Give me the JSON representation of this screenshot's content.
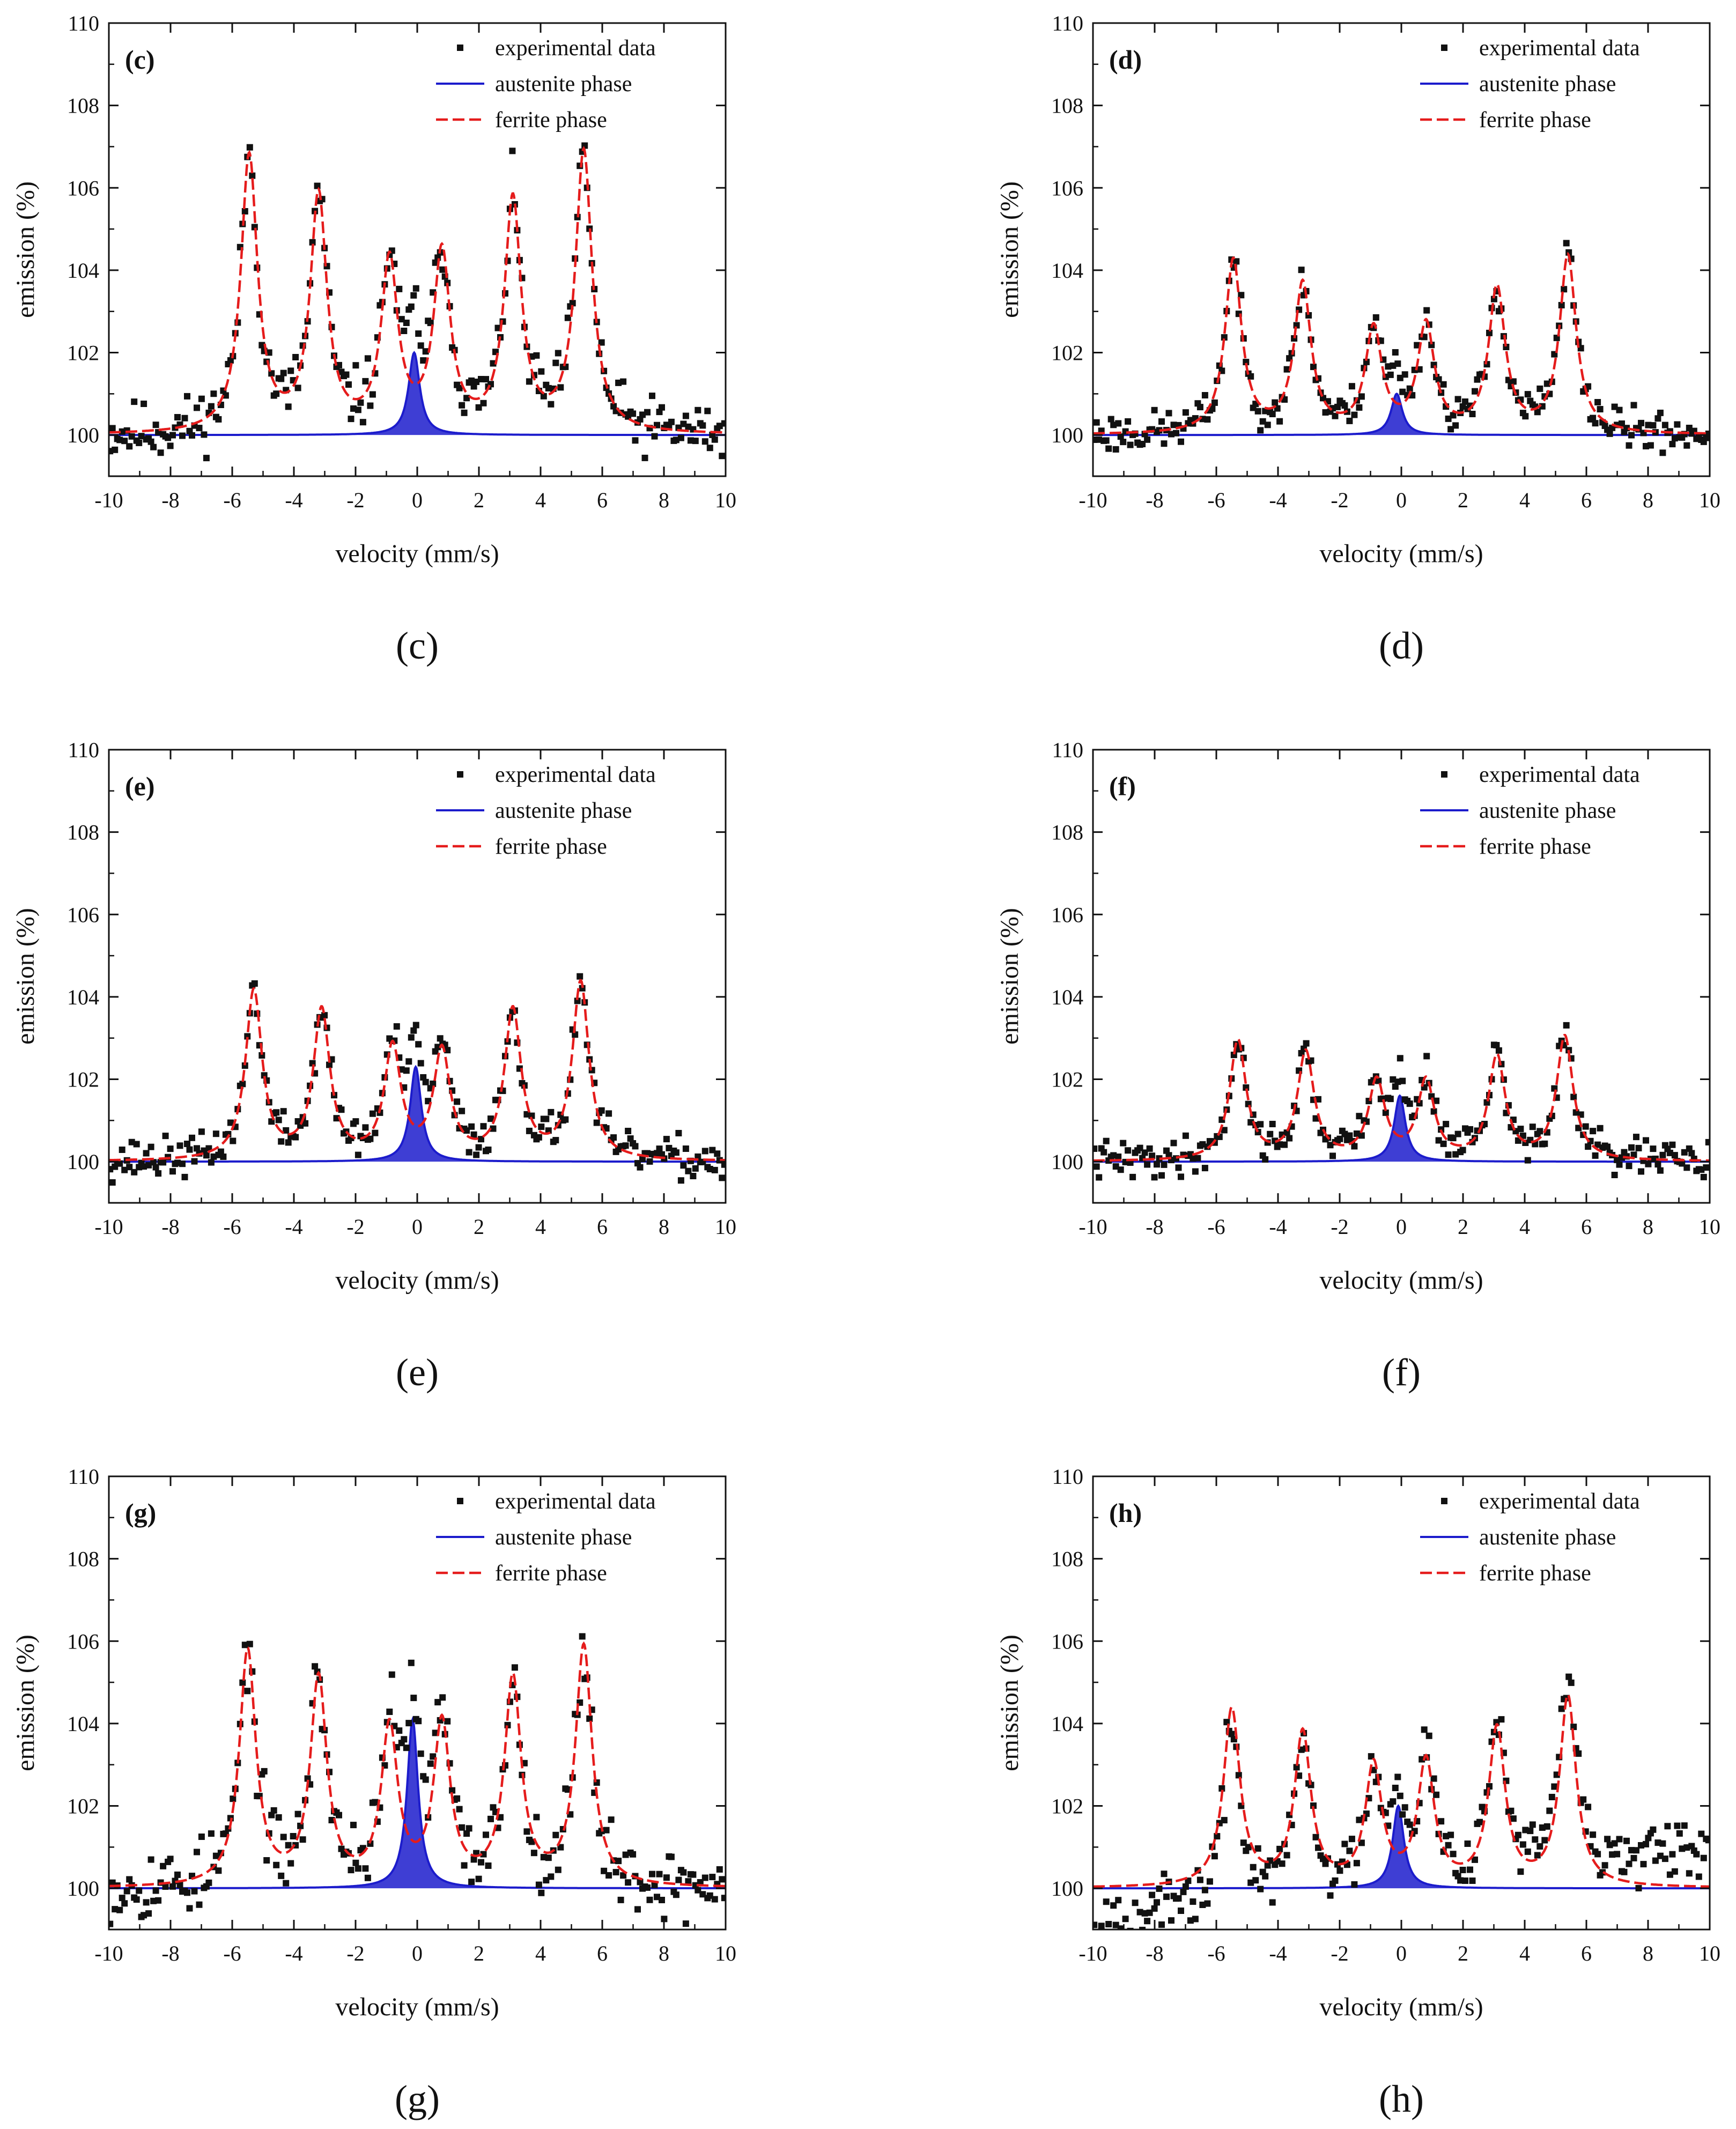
{
  "figure": {
    "legend": {
      "experimental": "experimental data",
      "austenite": "austenite phase",
      "ferrite": "ferrite phase"
    },
    "colors": {
      "data": "#111111",
      "austenite": "#1c1ccc",
      "ferrite": "#e51c1c",
      "axis": "#111111"
    }
  },
  "chart_data": [
    {
      "type": "scatter",
      "panel_label": "(c)",
      "caption": "(c)",
      "xlabel": "velocity (mm/s)",
      "ylabel": "emission (%)",
      "xlim": [
        -10,
        10
      ],
      "ylim": [
        99,
        110
      ],
      "xticks": [
        -10,
        -8,
        -6,
        -4,
        -2,
        0,
        2,
        4,
        6,
        8,
        10
      ],
      "yticks": [
        100,
        102,
        104,
        106,
        108,
        110
      ],
      "legend_position": "top-right",
      "ferrite_peaks": [
        {
          "x": -5.45,
          "h": 6.7
        },
        {
          "x": -3.2,
          "h": 5.7
        },
        {
          "x": -0.9,
          "h": 4.1
        },
        {
          "x": 0.8,
          "h": 4.3
        },
        {
          "x": 3.1,
          "h": 5.6
        },
        {
          "x": 5.4,
          "h": 6.8
        }
      ],
      "austenite_peak": {
        "x": -0.1,
        "h": 2.0
      },
      "noise": 0.45,
      "baseline_drift": 0.0,
      "seed": 11
    },
    {
      "type": "scatter",
      "panel_label": "(d)",
      "caption": "(d)",
      "xlabel": "velocity (mm/s)",
      "ylabel": "emission (%)",
      "xlim": [
        -10,
        10
      ],
      "ylim": [
        99,
        110
      ],
      "xticks": [
        -10,
        -8,
        -6,
        -4,
        -2,
        0,
        2,
        4,
        6,
        8,
        10
      ],
      "yticks": [
        100,
        102,
        104,
        106,
        108,
        110
      ],
      "legend_position": "top-right",
      "ferrite_peaks": [
        {
          "x": -5.45,
          "h": 4.2
        },
        {
          "x": -3.2,
          "h": 3.6
        },
        {
          "x": -0.9,
          "h": 2.5
        },
        {
          "x": 0.8,
          "h": 2.6
        },
        {
          "x": 3.1,
          "h": 3.5
        },
        {
          "x": 5.4,
          "h": 4.3
        }
      ],
      "austenite_peak": {
        "x": -0.15,
        "h": 1.0
      },
      "noise": 0.3,
      "baseline_drift": 0.0,
      "seed": 23
    },
    {
      "type": "scatter",
      "panel_label": "(e)",
      "caption": "(e)",
      "xlabel": "velocity (mm/s)",
      "ylabel": "emission (%)",
      "xlim": [
        -10,
        10
      ],
      "ylim": [
        99,
        110
      ],
      "xticks": [
        -10,
        -8,
        -6,
        -4,
        -2,
        0,
        2,
        4,
        6,
        8,
        10
      ],
      "yticks": [
        100,
        102,
        104,
        106,
        108,
        110
      ],
      "legend_position": "top-right",
      "ferrite_peaks": [
        {
          "x": -5.3,
          "h": 4.1
        },
        {
          "x": -3.1,
          "h": 3.6
        },
        {
          "x": -0.8,
          "h": 2.7
        },
        {
          "x": 0.8,
          "h": 2.6
        },
        {
          "x": 3.1,
          "h": 3.6
        },
        {
          "x": 5.3,
          "h": 4.3
        }
      ],
      "austenite_peak": {
        "x": -0.05,
        "h": 2.3
      },
      "noise": 0.3,
      "baseline_drift": 0.0,
      "seed": 37
    },
    {
      "type": "scatter",
      "panel_label": "(f)",
      "caption": "(f)",
      "xlabel": "velocity (mm/s)",
      "ylabel": "emission (%)",
      "xlim": [
        -10,
        10
      ],
      "ylim": [
        99,
        110
      ],
      "xticks": [
        -10,
        -8,
        -6,
        -4,
        -2,
        0,
        2,
        4,
        6,
        8,
        10
      ],
      "yticks": [
        100,
        102,
        104,
        106,
        108,
        110
      ],
      "legend_position": "top-right",
      "ferrite_peaks": [
        {
          "x": -5.3,
          "h": 2.9
        },
        {
          "x": -3.1,
          "h": 2.6
        },
        {
          "x": -0.8,
          "h": 1.9
        },
        {
          "x": 0.8,
          "h": 1.9
        },
        {
          "x": 3.1,
          "h": 2.5
        },
        {
          "x": 5.3,
          "h": 3.0
        }
      ],
      "austenite_peak": {
        "x": -0.05,
        "h": 1.6
      },
      "noise": 0.28,
      "baseline_drift": 0.0,
      "seed": 41
    },
    {
      "type": "scatter",
      "panel_label": "(g)",
      "caption": "(g)",
      "xlabel": "velocity (mm/s)",
      "ylabel": "emission (%)",
      "xlim": [
        -10,
        10
      ],
      "ylim": [
        99,
        110
      ],
      "xticks": [
        -10,
        -8,
        -6,
        -4,
        -2,
        0,
        2,
        4,
        6,
        8,
        10
      ],
      "yticks": [
        100,
        102,
        104,
        106,
        108,
        110
      ],
      "legend_position": "top-right",
      "ferrite_peaks": [
        {
          "x": -5.5,
          "h": 5.7
        },
        {
          "x": -3.2,
          "h": 5.0
        },
        {
          "x": -0.9,
          "h": 3.8
        },
        {
          "x": 0.8,
          "h": 3.9
        },
        {
          "x": 3.1,
          "h": 5.0
        },
        {
          "x": 5.4,
          "h": 5.8
        }
      ],
      "austenite_peak": {
        "x": -0.15,
        "h": 4.1
      },
      "noise": 0.55,
      "baseline_drift": 0.0,
      "seed": 53
    },
    {
      "type": "scatter",
      "panel_label": "(h)",
      "caption": "(h)",
      "xlabel": "velocity (mm/s)",
      "ylabel": "emission (%)",
      "xlim": [
        -10,
        10
      ],
      "ylim": [
        99,
        110
      ],
      "xticks": [
        -10,
        -8,
        -6,
        -4,
        -2,
        0,
        2,
        4,
        6,
        8,
        10
      ],
      "yticks": [
        100,
        102,
        104,
        106,
        108,
        110
      ],
      "legend_position": "top-right",
      "ferrite_peaks": [
        {
          "x": -5.5,
          "h": 4.3
        },
        {
          "x": -3.2,
          "h": 3.7
        },
        {
          "x": -0.9,
          "h": 2.9
        },
        {
          "x": 0.8,
          "h": 3.0
        },
        {
          "x": 3.1,
          "h": 3.8
        },
        {
          "x": 5.4,
          "h": 4.6
        }
      ],
      "austenite_peak": {
        "x": -0.1,
        "h": 2.0
      },
      "noise": 0.45,
      "baseline_drift": 0.8,
      "seed": 67
    }
  ]
}
